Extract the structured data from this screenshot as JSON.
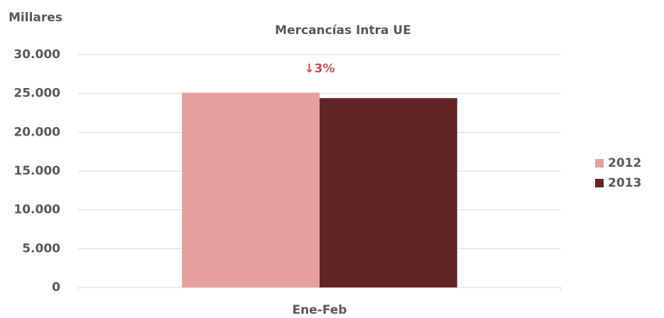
{
  "chart_data": {
    "type": "bar",
    "title": "Mercancías Intra UE",
    "y_axis_label": "Millares",
    "categories": [
      "Ene-Feb"
    ],
    "series": [
      {
        "name": "2012",
        "color": "#e6a19f",
        "values": [
          25100
        ]
      },
      {
        "name": "2013",
        "color": "#632523",
        "values": [
          24400
        ]
      }
    ],
    "annotation": {
      "text": "↓3%",
      "color": "#c0504d"
    },
    "ylim": [
      0,
      30000
    ],
    "yticks": [
      0,
      {
        "value": 5000,
        "label": "5.000"
      },
      {
        "value": 10000,
        "label": "10.000"
      },
      {
        "value": 15000,
        "label": "15.000"
      },
      {
        "value": 20000,
        "label": "20.000"
      },
      {
        "value": 25000,
        "label": "25.000"
      },
      {
        "value": 30000,
        "label": "30.000"
      }
    ],
    "grid": true,
    "legend": "right"
  }
}
